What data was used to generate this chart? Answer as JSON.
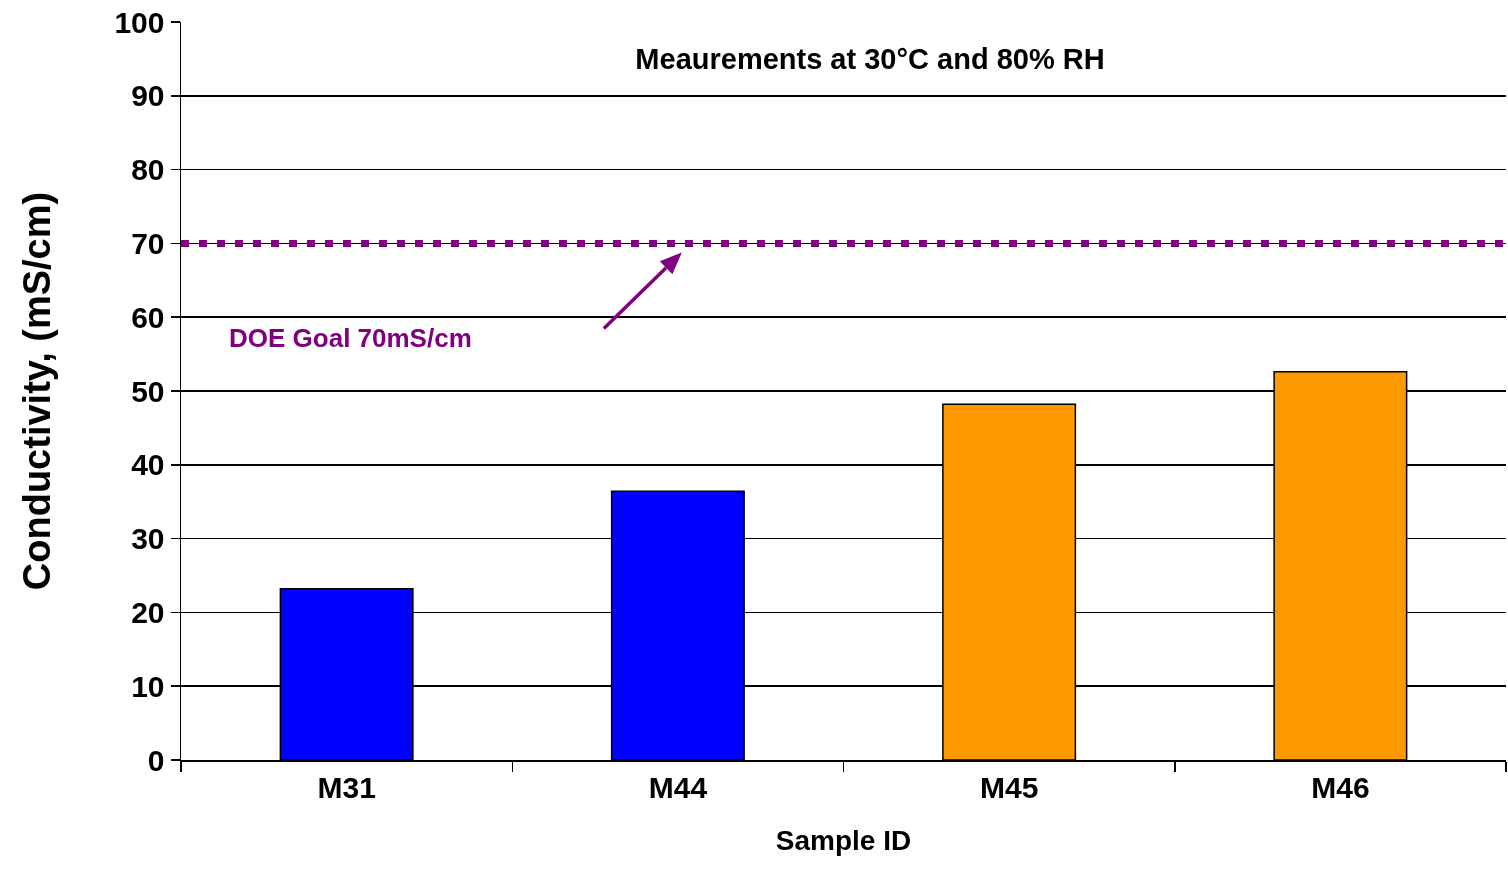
{
  "chart_data": {
    "type": "bar",
    "title": "Meaurements at 30°C and 80% RH",
    "xlabel": "Sample ID",
    "ylabel": "Conductivity, (mS/cm)",
    "categories": [
      "M31",
      "M44",
      "M45",
      "M46"
    ],
    "values": [
      23.2,
      36.4,
      48.2,
      52.6
    ],
    "colors": [
      "#0000ff",
      "#0000ff",
      "#ff9900",
      "#ff9900"
    ],
    "ylim": [
      0,
      100
    ],
    "yticks": [
      0,
      10,
      20,
      30,
      40,
      50,
      60,
      70,
      80,
      90,
      100
    ],
    "grid": "y",
    "ref_lines": [
      {
        "axis": "y",
        "value": 70,
        "label": "DOE Goal 70mS/cm",
        "color": "#800080",
        "line_style": "dotted"
      }
    ]
  }
}
